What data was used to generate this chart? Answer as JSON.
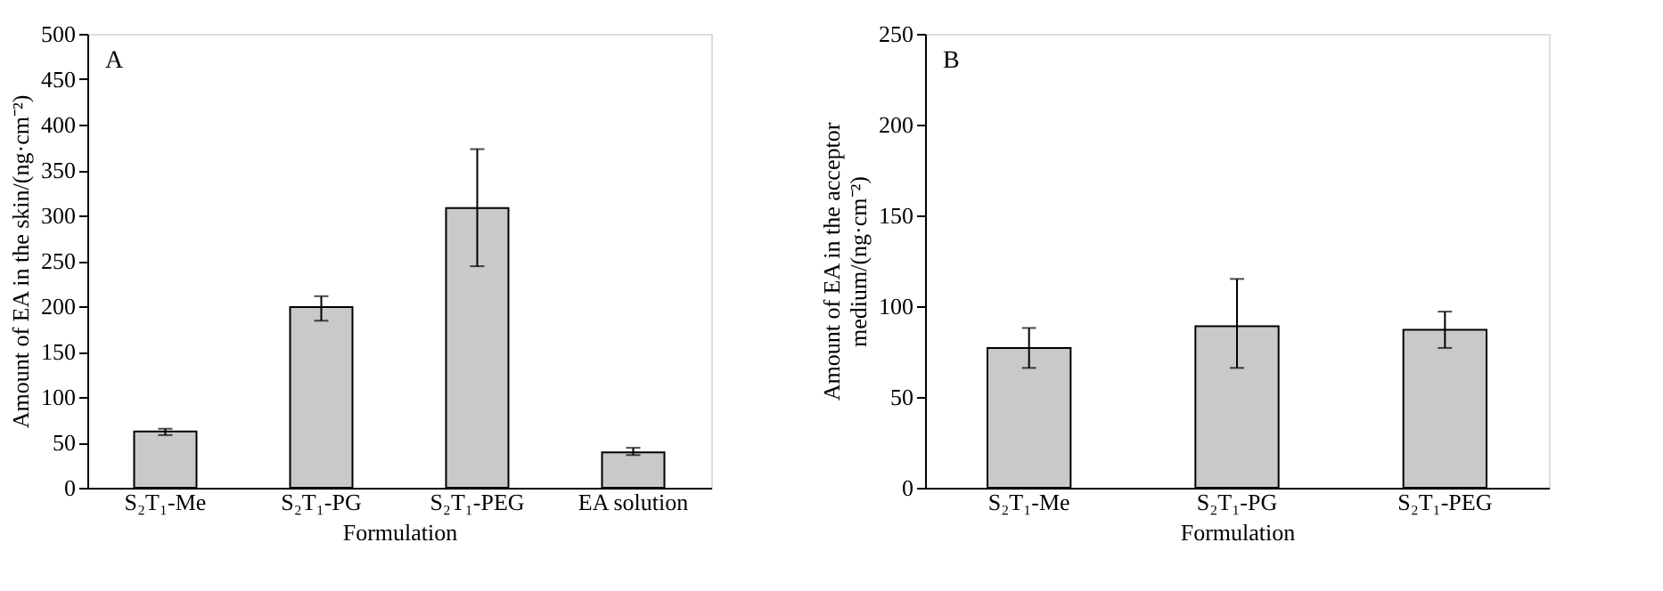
{
  "chart_data": [
    {
      "type": "bar",
      "categories": [
        "S₂T₁-Me",
        "S₂T₁-PG",
        "S₂T₁-PEG",
        "EA solution"
      ],
      "values": [
        62,
        199,
        308,
        39
      ],
      "color": "#c8c9c8",
      "errors": [
        [
          58,
          65
        ],
        [
          184,
          211
        ],
        [
          244,
          373
        ],
        [
          36,
          44
        ]
      ],
      "xlabel": "Formulation",
      "ylabel": "Amount of EA in the skin/(ng·cm⁻²)",
      "ylim": [
        0,
        500
      ],
      "yticks": [
        0,
        50,
        100,
        150,
        200,
        250,
        300,
        350,
        400,
        450,
        500
      ],
      "grid": false,
      "annotations": [
        "A"
      ]
    },
    {
      "type": "bar",
      "categories": [
        "S₂T₁-Me",
        "S₂T₁-PG",
        "S₂T₁-PEG"
      ],
      "values": [
        77,
        89,
        87
      ],
      "color": "#c8c9c8",
      "errors": [
        [
          66,
          88
        ],
        [
          66,
          115
        ],
        [
          77,
          97
        ]
      ],
      "xlabel": "Formulation",
      "ylabel": "Amount of EA in the acceptor medium/(ng·cm⁻²)",
      "ylim": [
        0,
        250
      ],
      "yticks": [
        0,
        50,
        100,
        150,
        200,
        250
      ],
      "grid": false,
      "annotations": [
        "B"
      ]
    }
  ]
}
